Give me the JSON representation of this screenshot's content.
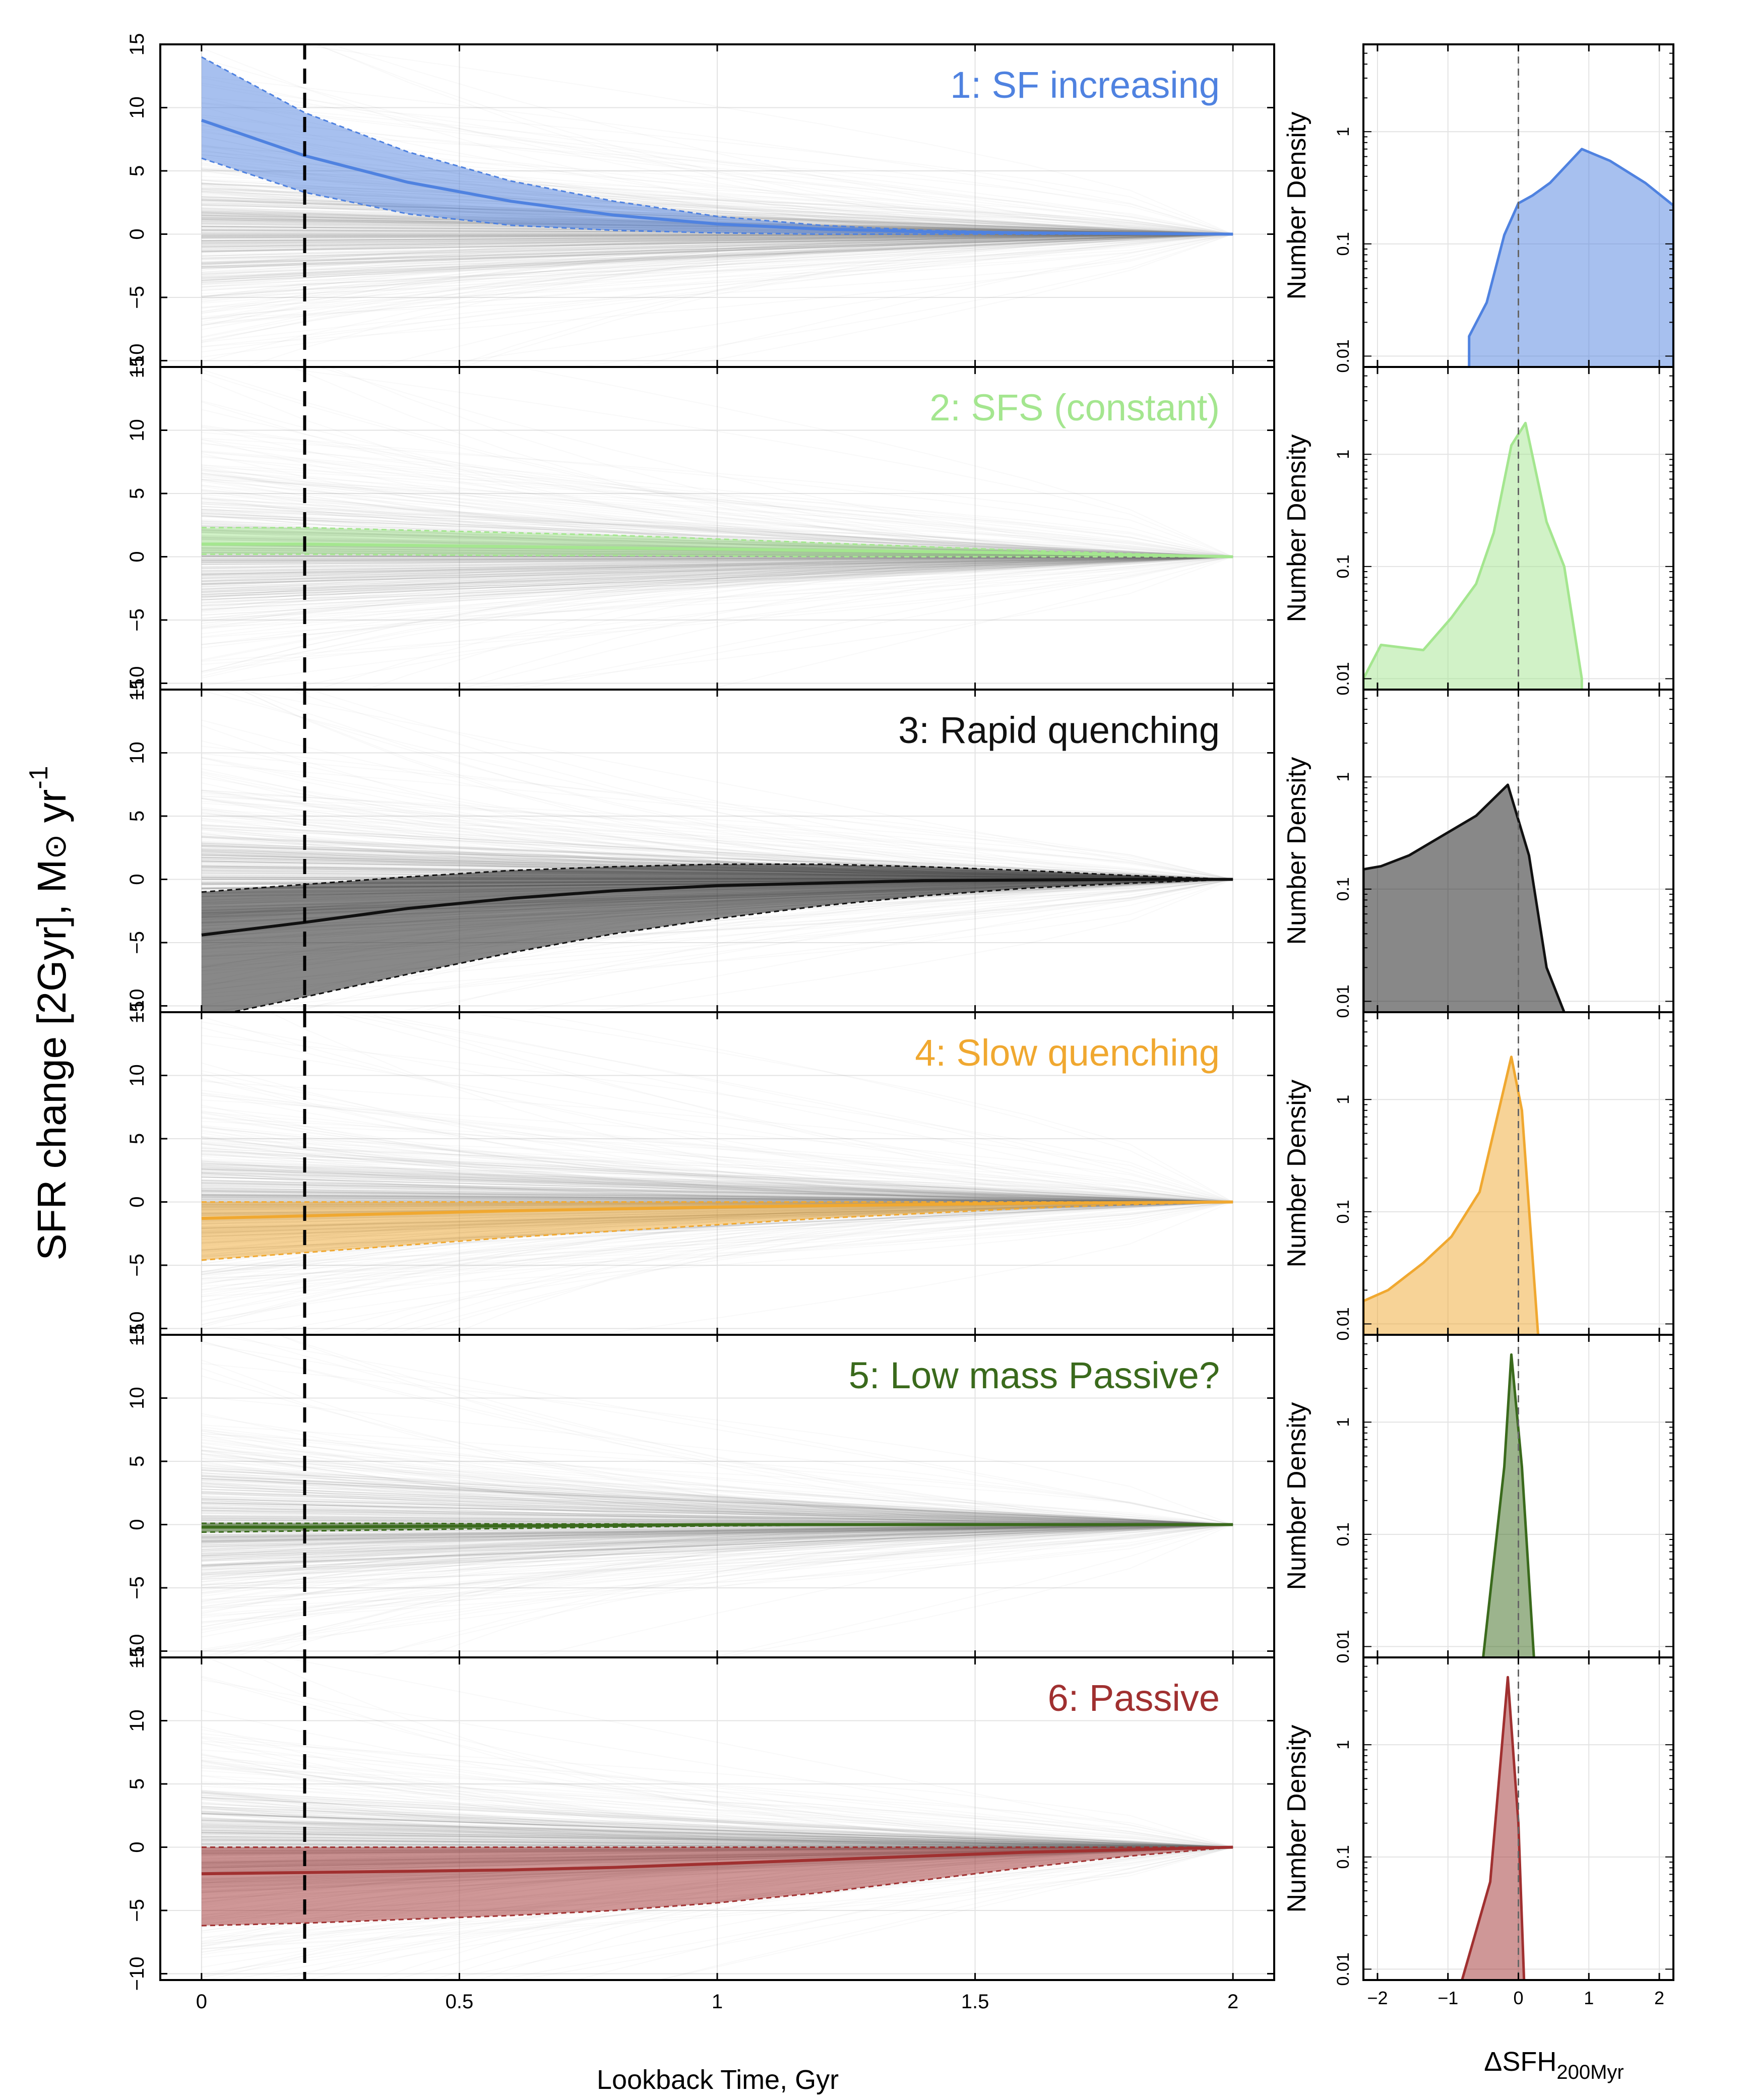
{
  "figure": {
    "ylabel_main": "SFR change [2Gyr], M",
    "ylabel_sun": "⊙",
    "ylabel_unit": " yr",
    "ylabel_exp": "-1",
    "xlabel_main": "Lookback Time, Gyr",
    "xlabel_hist": "ΔSFH",
    "xlabel_hist_sub": "200Myr",
    "hist_ylabel": "Number Density"
  },
  "colors": {
    "background_lines": "#9a9a9a",
    "grid": "#e3e3e3",
    "marker_line": "#000000"
  },
  "chart_data": [
    {
      "type": "line",
      "panel": "left",
      "xlabel": "Lookback Time, Gyr",
      "ylabel": "SFR change [2Gyr], M⊙ yr^-1",
      "xlim": [
        -0.08,
        2.08
      ],
      "ylim": [
        -10.5,
        15
      ],
      "xticks": [
        0,
        0.5,
        1,
        1.5,
        2
      ],
      "xtick_labels": [
        "0",
        "0.5",
        "1",
        "1.5",
        "2"
      ],
      "yticks": [
        -10,
        -5,
        0,
        5,
        10,
        15
      ],
      "ytick_labels": [
        "−10",
        "−5",
        "0",
        "5",
        "10",
        "15"
      ],
      "vline_x": 0.2,
      "x": [
        0,
        0.2,
        0.4,
        0.6,
        0.8,
        1.0,
        1.2,
        1.4,
        1.6,
        1.8,
        2.0
      ],
      "series": [
        {
          "name": "1: SF increasing",
          "color": "#4f82e0",
          "median": [
            9,
            6.2,
            4.1,
            2.6,
            1.5,
            0.8,
            0.4,
            0.2,
            0.1,
            0.05,
            0
          ],
          "upper": [
            14,
            9.6,
            6.5,
            4.2,
            2.6,
            1.4,
            0.7,
            0.3,
            0.15,
            0.05,
            0
          ],
          "lower": [
            6,
            3.3,
            1.6,
            0.7,
            0.3,
            0.1,
            0,
            0,
            0,
            0,
            0
          ]
        },
        {
          "name": "2: SFS (constant)",
          "color": "#a4e68f",
          "median": [
            1.0,
            1.0,
            0.9,
            0.8,
            0.7,
            0.6,
            0.5,
            0.4,
            0.3,
            0.15,
            0
          ],
          "upper": [
            2.3,
            2.3,
            2.1,
            1.9,
            1.7,
            1.4,
            1.1,
            0.8,
            0.5,
            0.25,
            0
          ],
          "lower": [
            0.2,
            0.2,
            0.15,
            0.1,
            0.1,
            0.05,
            0,
            0,
            0,
            0,
            0
          ]
        },
        {
          "name": "3: Rapid quenching",
          "color": "#111111",
          "median": [
            -4.4,
            -3.4,
            -2.3,
            -1.5,
            -0.9,
            -0.5,
            -0.3,
            -0.1,
            -0.05,
            0,
            0
          ],
          "upper": [
            -1.0,
            -0.4,
            0.2,
            0.7,
            1.0,
            1.2,
            1.2,
            1.0,
            0.7,
            0.3,
            0
          ],
          "lower": [
            -11,
            -9.3,
            -7.5,
            -5.8,
            -4.3,
            -3.1,
            -2.1,
            -1.3,
            -0.7,
            -0.3,
            0
          ]
        },
        {
          "name": "4: Slow quenching",
          "color": "#f0a830",
          "median": [
            -1.3,
            -1.1,
            -0.9,
            -0.7,
            -0.55,
            -0.4,
            -0.3,
            -0.2,
            -0.1,
            -0.05,
            0
          ],
          "upper": [
            0,
            0,
            0,
            0,
            0,
            0,
            0,
            0,
            0,
            0,
            0
          ],
          "lower": [
            -4.6,
            -4.0,
            -3.4,
            -2.8,
            -2.3,
            -1.8,
            -1.3,
            -0.9,
            -0.5,
            -0.2,
            0
          ]
        },
        {
          "name": "5: Low mass Passive?",
          "color": "#3a6a1c",
          "median": [
            -0.2,
            -0.2,
            -0.15,
            -0.1,
            -0.05,
            0,
            0,
            0,
            0,
            0,
            0
          ],
          "upper": [
            0.1,
            0.1,
            0.1,
            0.05,
            0.05,
            0,
            0,
            0,
            0,
            0,
            0
          ],
          "lower": [
            -0.6,
            -0.5,
            -0.4,
            -0.3,
            -0.2,
            -0.1,
            -0.05,
            0,
            0,
            0,
            0
          ]
        },
        {
          "name": "6: Passive",
          "color": "#a03030",
          "median": [
            -2.1,
            -2.0,
            -1.9,
            -1.8,
            -1.6,
            -1.3,
            -1.0,
            -0.7,
            -0.4,
            -0.2,
            0
          ],
          "upper": [
            0,
            0,
            0,
            0,
            0,
            0,
            0,
            0,
            0,
            0,
            0
          ],
          "lower": [
            -6.2,
            -6.0,
            -5.7,
            -5.4,
            -5.0,
            -4.4,
            -3.6,
            -2.6,
            -1.6,
            -0.7,
            0
          ]
        }
      ]
    },
    {
      "type": "area",
      "panel": "right",
      "xlabel": "ΔSFH 200Myr",
      "ylabel": "Number Density",
      "xlim": [
        -2.2,
        2.2
      ],
      "ylim_log": [
        0.008,
        6
      ],
      "xticks": [
        -2,
        -1,
        0,
        1,
        2
      ],
      "xtick_labels": [
        "−2",
        "−1",
        "0",
        "1",
        "2"
      ],
      "yticks": [
        0.01,
        0.1,
        1
      ],
      "ytick_labels": [
        "0.01",
        "0.1",
        "1"
      ],
      "vline_x": 0,
      "series": [
        {
          "name": "1: SF increasing",
          "color": "#4f82e0",
          "x": [
            -0.7,
            -0.45,
            -0.2,
            0,
            0.2,
            0.45,
            0.9,
            1.3,
            1.8,
            2.2
          ],
          "y": [
            0.015,
            0.03,
            0.12,
            0.23,
            0.27,
            0.35,
            0.7,
            0.55,
            0.35,
            0.22
          ]
        },
        {
          "name": "2: SFS (constant)",
          "color": "#a4e68f",
          "x": [
            -2.2,
            -1.95,
            -1.35,
            -0.95,
            -0.6,
            -0.35,
            -0.1,
            0.1,
            0.4,
            0.65,
            0.9
          ],
          "y": [
            0.01,
            0.02,
            0.018,
            0.035,
            0.07,
            0.2,
            1.2,
            1.9,
            0.25,
            0.1,
            0.01
          ]
        },
        {
          "name": "3: Rapid quenching",
          "color": "#111111",
          "x": [
            -2.2,
            -1.95,
            -1.55,
            -1.0,
            -0.6,
            -0.15,
            0.15,
            0.4,
            0.65
          ],
          "y": [
            0.15,
            0.16,
            0.2,
            0.32,
            0.45,
            0.85,
            0.2,
            0.02,
            0.008
          ]
        },
        {
          "name": "4: Slow quenching",
          "color": "#f0a830",
          "x": [
            -2.2,
            -1.85,
            -1.35,
            -0.95,
            -0.55,
            -0.1,
            0.05,
            0.28
          ],
          "y": [
            0.016,
            0.02,
            0.035,
            0.06,
            0.15,
            2.4,
            0.8,
            0.008
          ]
        },
        {
          "name": "5: Low mass Passive?",
          "color": "#3a6a1c",
          "x": [
            -0.5,
            -0.2,
            -0.1,
            0.05,
            0.22
          ],
          "y": [
            0.008,
            0.4,
            4.0,
            0.4,
            0.008
          ]
        },
        {
          "name": "6: Passive",
          "color": "#a03030",
          "x": [
            -0.8,
            -0.4,
            -0.15,
            0.0,
            0.08
          ],
          "y": [
            0.008,
            0.06,
            4.0,
            0.2,
            0.008
          ]
        }
      ]
    }
  ]
}
